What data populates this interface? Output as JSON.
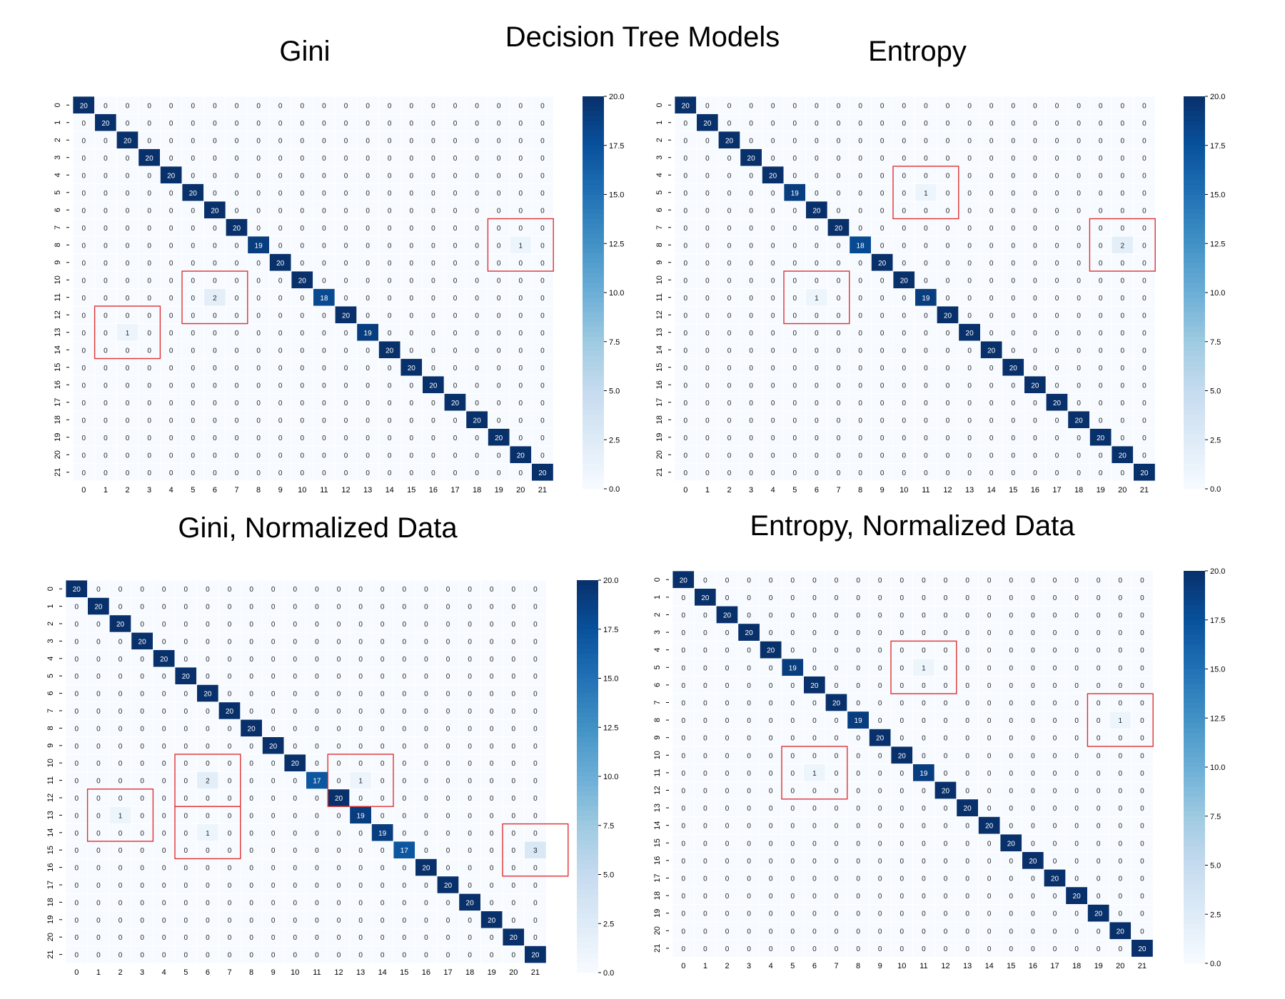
{
  "figure_title": "Decision Tree Models",
  "colorbar": {
    "ticks": [
      "0.0",
      "2.5",
      "5.0",
      "7.5",
      "10.0",
      "12.5",
      "15.0",
      "17.5",
      "20.0"
    ],
    "vmin": 0,
    "vmax": 20,
    "cmap": [
      "#f7fbff",
      "#deebf7",
      "#c6dbef",
      "#9ecae1",
      "#6baed6",
      "#4292c6",
      "#2171b5",
      "#08519c",
      "#08306b"
    ]
  },
  "highlight_color": "#e03030",
  "chart_data": [
    {
      "type": "heatmap",
      "title": "Gini",
      "labels": [
        "0",
        "1",
        "2",
        "3",
        "4",
        "5",
        "6",
        "7",
        "8",
        "9",
        "10",
        "11",
        "12",
        "13",
        "14",
        "15",
        "16",
        "17",
        "18",
        "19",
        "20",
        "21"
      ],
      "diagonal": [
        20,
        20,
        20,
        20,
        20,
        20,
        20,
        20,
        19,
        20,
        20,
        18,
        20,
        19,
        20,
        20,
        20,
        20,
        20,
        20,
        20,
        20
      ],
      "off_diagonal": [
        {
          "row": 8,
          "col": 20,
          "value": 1
        },
        {
          "row": 11,
          "col": 6,
          "value": 2
        },
        {
          "row": 13,
          "col": 2,
          "value": 1
        }
      ],
      "highlights": [
        {
          "row": 8,
          "col": 20
        },
        {
          "row": 11,
          "col": 6
        },
        {
          "row": 13,
          "col": 2
        }
      ],
      "colorbar_range": [
        0,
        20
      ]
    },
    {
      "type": "heatmap",
      "title": "Entropy",
      "labels": [
        "0",
        "1",
        "2",
        "3",
        "4",
        "5",
        "6",
        "7",
        "8",
        "9",
        "10",
        "11",
        "12",
        "13",
        "14",
        "15",
        "16",
        "17",
        "18",
        "19",
        "20",
        "21"
      ],
      "diagonal": [
        20,
        20,
        20,
        20,
        20,
        19,
        20,
        20,
        18,
        20,
        20,
        19,
        20,
        20,
        20,
        20,
        20,
        20,
        20,
        20,
        20,
        20
      ],
      "off_diagonal": [
        {
          "row": 5,
          "col": 11,
          "value": 1
        },
        {
          "row": 8,
          "col": 20,
          "value": 2
        },
        {
          "row": 11,
          "col": 6,
          "value": 1
        }
      ],
      "highlights": [
        {
          "row": 5,
          "col": 11
        },
        {
          "row": 8,
          "col": 20
        },
        {
          "row": 11,
          "col": 6
        }
      ],
      "colorbar_range": [
        0,
        20
      ]
    },
    {
      "type": "heatmap",
      "title": "Gini, Normalized Data",
      "labels": [
        "0",
        "1",
        "2",
        "3",
        "4",
        "5",
        "6",
        "7",
        "8",
        "9",
        "10",
        "11",
        "12",
        "13",
        "14",
        "15",
        "16",
        "17",
        "18",
        "19",
        "20",
        "21"
      ],
      "diagonal": [
        20,
        20,
        20,
        20,
        20,
        20,
        20,
        20,
        20,
        20,
        20,
        17,
        20,
        19,
        19,
        17,
        20,
        20,
        20,
        20,
        20,
        20
      ],
      "off_diagonal": [
        {
          "row": 11,
          "col": 6,
          "value": 2
        },
        {
          "row": 11,
          "col": 13,
          "value": 1
        },
        {
          "row": 13,
          "col": 2,
          "value": 1
        },
        {
          "row": 14,
          "col": 6,
          "value": 1
        },
        {
          "row": 15,
          "col": 21,
          "value": 3
        }
      ],
      "highlights": [
        {
          "row": 11,
          "col": 6
        },
        {
          "row": 11,
          "col": 13
        },
        {
          "row": 13,
          "col": 2
        },
        {
          "row": 14,
          "col": 6
        },
        {
          "row": 15,
          "col": 21
        }
      ],
      "colorbar_range": [
        0,
        20
      ]
    },
    {
      "type": "heatmap",
      "title": "Entropy, Normalized Data",
      "labels": [
        "0",
        "1",
        "2",
        "3",
        "4",
        "5",
        "6",
        "7",
        "8",
        "9",
        "10",
        "11",
        "12",
        "13",
        "14",
        "15",
        "16",
        "17",
        "18",
        "19",
        "20",
        "21"
      ],
      "diagonal": [
        20,
        20,
        20,
        20,
        20,
        19,
        20,
        20,
        19,
        20,
        20,
        19,
        20,
        20,
        20,
        20,
        20,
        20,
        20,
        20,
        20,
        20
      ],
      "off_diagonal": [
        {
          "row": 5,
          "col": 11,
          "value": 1
        },
        {
          "row": 8,
          "col": 20,
          "value": 1
        },
        {
          "row": 11,
          "col": 6,
          "value": 1
        }
      ],
      "highlights": [
        {
          "row": 5,
          "col": 11
        },
        {
          "row": 8,
          "col": 20
        },
        {
          "row": 11,
          "col": 6
        }
      ],
      "colorbar_range": [
        0,
        20
      ]
    }
  ]
}
